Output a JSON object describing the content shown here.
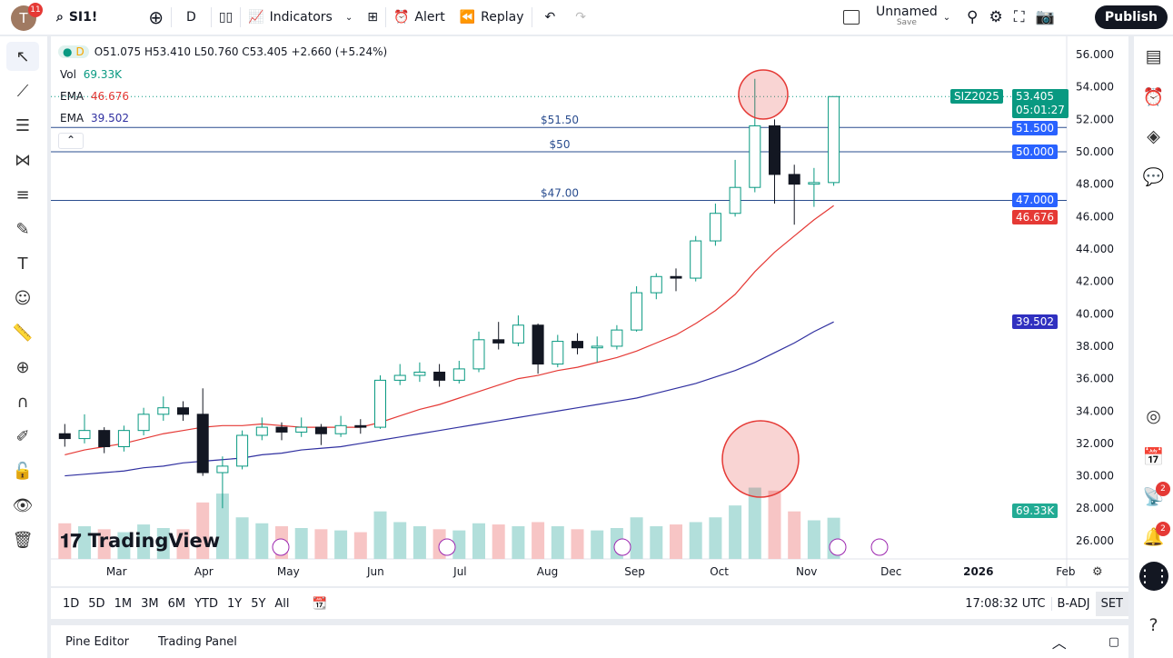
{
  "topbar": {
    "avatar_letter": "T",
    "notif_count": "11",
    "symbol": "SI1!",
    "interval": "D",
    "indicators": "Indicators",
    "alert": "Alert",
    "replay": "Replay",
    "layout_name": "Unnamed",
    "save": "Save",
    "publish": "Publish"
  },
  "legend": {
    "interval": "D",
    "ohlc": "O51.075 H53.410 L50.760 C53.405 +2.660 (+5.24%)",
    "vol_label": "Vol",
    "vol_value": "69.33K",
    "ema1_label": "EMA",
    "ema1_value": "46.676",
    "ema2_label": "EMA",
    "ema2_value": "39.502"
  },
  "price_labels": {
    "symbol": "SIZ2025",
    "last": "53.405",
    "countdown": "05:01:27",
    "l1": "51.500",
    "l2": "50.000",
    "l3": "47.000",
    "ema1": "46.676",
    "ema2": "39.502",
    "vol": "69.33K"
  },
  "hlines": [
    {
      "price": 51.5,
      "label": "$51.50"
    },
    {
      "price": 50,
      "label": "$50"
    },
    {
      "price": 47,
      "label": "$47.00"
    }
  ],
  "colors": {
    "up": "#089981",
    "down": "#131722",
    "ema50": "#e53935",
    "ema200": "#3030a0",
    "hline": "#2a4d8f",
    "accent": "#2962ff"
  },
  "bottombar": {
    "ranges": [
      "1D",
      "5D",
      "1M",
      "3M",
      "6M",
      "YTD",
      "1Y",
      "5Y",
      "All"
    ],
    "time": "17:08:32 UTC",
    "badj": "B-ADJ",
    "set": "SET"
  },
  "panel": {
    "pine": "Pine Editor",
    "trading": "Trading Panel"
  },
  "logo": "TradingView",
  "right_badges": {
    "ideas": "2",
    "alerts": "2"
  },
  "chart_data": {
    "type": "candlestick",
    "yticks": [
      26,
      28,
      30,
      32,
      34,
      36,
      38,
      40,
      42,
      44,
      46,
      48,
      50,
      52,
      54,
      56
    ],
    "ylim": [
      26,
      56
    ],
    "xticks": [
      "Mar",
      "Apr",
      "May",
      "Jun",
      "Jul",
      "Aug",
      "Sep",
      "Oct",
      "Nov",
      "Dec",
      "2026",
      "Feb"
    ],
    "xtick_dates": [
      "2025-03-01",
      "2025-04-01",
      "2025-05-01",
      "2025-06-01",
      "2025-07-01",
      "2025-08-01",
      "2025-09-01",
      "2025-10-01",
      "2025-11-01",
      "2025-12-01",
      "2026-01-01",
      "2026-02-01"
    ],
    "candles": [
      [
        "2025-02-10",
        32.6,
        33.2,
        31.8,
        32.3,
        60
      ],
      [
        "2025-02-17",
        32.3,
        33.8,
        32.0,
        32.8,
        55
      ],
      [
        "2025-02-24",
        32.8,
        33.0,
        31.4,
        31.8,
        50
      ],
      [
        "2025-03-03",
        31.8,
        33.1,
        31.5,
        32.8,
        45
      ],
      [
        "2025-03-10",
        32.8,
        34.2,
        32.5,
        33.8,
        58
      ],
      [
        "2025-03-17",
        33.8,
        34.9,
        33.4,
        34.2,
        52
      ],
      [
        "2025-03-24",
        34.2,
        34.6,
        33.4,
        33.8,
        50
      ],
      [
        "2025-03-31",
        33.8,
        35.4,
        30.0,
        30.2,
        95
      ],
      [
        "2025-04-07",
        30.2,
        31.2,
        28.0,
        30.6,
        110
      ],
      [
        "2025-04-14",
        30.6,
        32.8,
        30.4,
        32.5,
        70
      ],
      [
        "2025-04-21",
        32.5,
        33.6,
        32.2,
        33.0,
        60
      ],
      [
        "2025-04-28",
        33.0,
        33.3,
        32.2,
        32.7,
        55
      ],
      [
        "2025-05-05",
        32.7,
        33.6,
        32.4,
        33.0,
        52
      ],
      [
        "2025-05-12",
        33.0,
        33.2,
        31.9,
        32.6,
        50
      ],
      [
        "2025-05-19",
        32.6,
        33.7,
        32.4,
        33.1,
        48
      ],
      [
        "2025-05-26",
        33.1,
        33.5,
        32.6,
        33.0,
        45
      ],
      [
        "2025-06-02",
        33.0,
        36.2,
        32.9,
        35.9,
        80
      ],
      [
        "2025-06-09",
        35.9,
        36.9,
        35.6,
        36.2,
        62
      ],
      [
        "2025-06-16",
        36.2,
        37.0,
        35.8,
        36.4,
        55
      ],
      [
        "2025-06-23",
        36.4,
        36.9,
        35.5,
        35.9,
        50
      ],
      [
        "2025-06-30",
        35.9,
        37.1,
        35.7,
        36.6,
        48
      ],
      [
        "2025-07-07",
        36.6,
        38.9,
        36.4,
        38.4,
        60
      ],
      [
        "2025-07-14",
        38.4,
        39.5,
        37.8,
        38.2,
        58
      ],
      [
        "2025-07-21",
        38.2,
        39.9,
        38.0,
        39.3,
        55
      ],
      [
        "2025-07-28",
        39.3,
        39.4,
        36.3,
        36.9,
        62
      ],
      [
        "2025-08-04",
        36.9,
        38.7,
        36.7,
        38.3,
        55
      ],
      [
        "2025-08-11",
        38.3,
        38.8,
        37.5,
        37.9,
        50
      ],
      [
        "2025-08-18",
        37.9,
        38.6,
        37.0,
        38.0,
        48
      ],
      [
        "2025-08-25",
        38.0,
        39.3,
        37.8,
        39.0,
        52
      ],
      [
        "2025-09-01",
        39.0,
        41.7,
        38.9,
        41.3,
        70
      ],
      [
        "2025-09-08",
        41.3,
        42.5,
        40.9,
        42.3,
        55
      ],
      [
        "2025-09-15",
        42.3,
        42.8,
        41.4,
        42.2,
        58
      ],
      [
        "2025-09-22",
        42.2,
        44.8,
        42.0,
        44.5,
        62
      ],
      [
        "2025-09-29",
        44.5,
        46.8,
        44.2,
        46.2,
        70
      ],
      [
        "2025-10-06",
        46.2,
        49.5,
        46.0,
        47.8,
        90
      ],
      [
        "2025-10-13",
        47.8,
        54.5,
        47.5,
        51.6,
        120
      ],
      [
        "2025-10-20",
        51.6,
        52.0,
        46.8,
        48.6,
        115
      ],
      [
        "2025-10-27",
        48.6,
        49.2,
        45.5,
        48.0,
        80
      ],
      [
        "2025-11-03",
        48.0,
        49.0,
        46.6,
        48.1,
        65
      ],
      [
        "2025-11-10",
        48.1,
        53.41,
        47.9,
        53.405,
        69.33
      ]
    ],
    "ema50": [
      31.3,
      31.6,
      31.8,
      32.0,
      32.3,
      32.6,
      32.8,
      33.0,
      33.1,
      33.1,
      33.2,
      33.1,
      33.0,
      33.0,
      33.0,
      33.0,
      33.3,
      33.7,
      34.1,
      34.4,
      34.8,
      35.2,
      35.6,
      36.0,
      36.2,
      36.5,
      36.7,
      37.0,
      37.3,
      37.7,
      38.2,
      38.7,
      39.4,
      40.2,
      41.2,
      42.6,
      43.8,
      44.8,
      45.8,
      46.676
    ],
    "ema200": [
      30.0,
      30.1,
      30.2,
      30.3,
      30.5,
      30.6,
      30.8,
      30.9,
      31.0,
      31.1,
      31.3,
      31.4,
      31.6,
      31.7,
      31.8,
      32.0,
      32.2,
      32.4,
      32.6,
      32.8,
      33.0,
      33.2,
      33.4,
      33.6,
      33.8,
      34.0,
      34.2,
      34.4,
      34.6,
      34.8,
      35.1,
      35.4,
      35.7,
      36.1,
      36.5,
      37.0,
      37.6,
      38.2,
      38.9,
      39.502
    ],
    "volume_unit": "K"
  }
}
